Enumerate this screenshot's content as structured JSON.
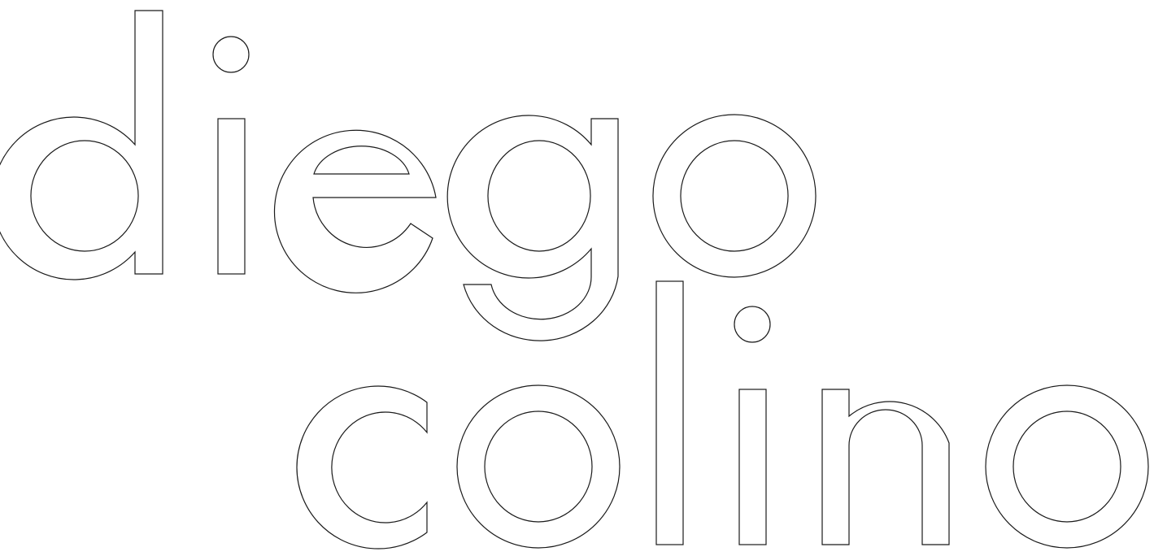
{
  "logo": {
    "text_line1": "diego",
    "text_line2": "colino",
    "colors": {
      "background": "#ffffff",
      "letter_fill": "#ffffff",
      "letter_outline": "#1a1a1a"
    }
  }
}
